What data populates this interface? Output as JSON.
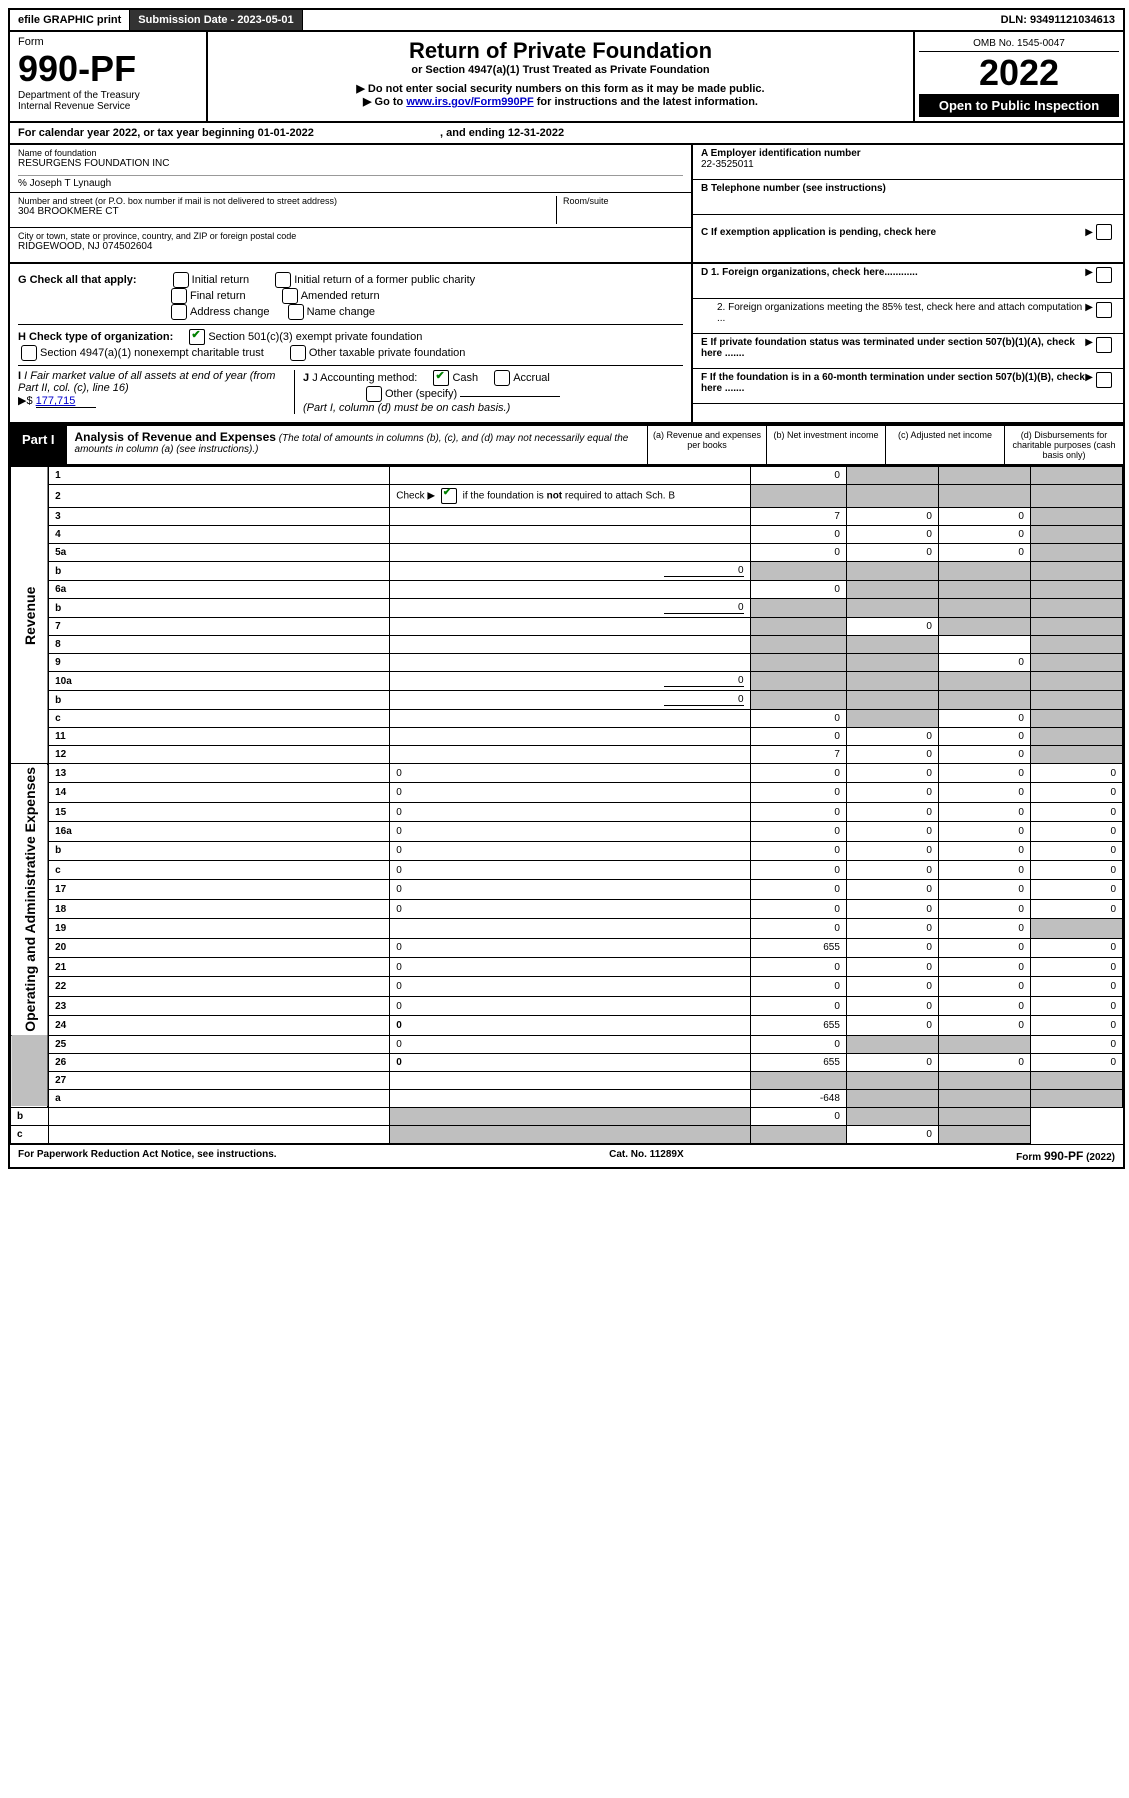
{
  "topbar": {
    "efile": "efile GRAPHIC print",
    "submission_label": "Submission Date - 2023-05-01",
    "dln_label": "DLN: 93491121034613"
  },
  "header": {
    "form_word": "Form",
    "form_no": "990-PF",
    "dept": "Department of the Treasury",
    "irs": "Internal Revenue Service",
    "title": "Return of Private Foundation",
    "subtitle": "or Section 4947(a)(1) Trust Treated as Private Foundation",
    "note1": "▶ Do not enter social security numbers on this form as it may be made public.",
    "note2_pre": "▶ Go to ",
    "note2_link": "www.irs.gov/Form990PF",
    "note2_post": " for instructions and the latest information.",
    "omb": "OMB No. 1545-0047",
    "year": "2022",
    "open_public": "Open to Public Inspection"
  },
  "calendar": {
    "text_a": "For calendar year 2022, or tax year beginning 01-01-2022",
    "text_b": ", and ending 12-31-2022"
  },
  "name_block": {
    "label": "Name of foundation",
    "name": "RESURGENS FOUNDATION INC",
    "care_of": "% Joseph T Lynaugh",
    "addr_label": "Number and street (or P.O. box number if mail is not delivered to street address)",
    "addr": "304 BROOKMERE CT",
    "room_label": "Room/suite",
    "city_label": "City or town, state or province, country, and ZIP or foreign postal code",
    "city": "RIDGEWOOD, NJ  074502604"
  },
  "right_block": {
    "a_label": "A Employer identification number",
    "a_val": "22-3525011",
    "b_label": "B Telephone number (see instructions)",
    "c_label": "C If exemption application is pending, check here",
    "d1_label": "D 1. Foreign organizations, check here............",
    "d2_label": "2. Foreign organizations meeting the 85% test, check here and attach computation ...",
    "e_label": "E  If private foundation status was terminated under section 507(b)(1)(A), check here .......",
    "f_label": "F  If the foundation is in a 60-month termination under section 507(b)(1)(B), check here .......",
    "arrow": "▶"
  },
  "g_block": {
    "label": "G Check all that apply:",
    "opts": [
      "Initial return",
      "Initial return of a former public charity",
      "Final return",
      "Amended return",
      "Address change",
      "Name change"
    ]
  },
  "h_block": {
    "label": "H Check type of organization:",
    "opt1": "Section 501(c)(3) exempt private foundation",
    "opt2": "Section 4947(a)(1) nonexempt charitable trust",
    "opt3": "Other taxable private foundation"
  },
  "i_block": {
    "label": "I Fair market value of all assets at end of year (from Part II, col. (c), line 16)",
    "arrow": "▶$",
    "val": "177,715"
  },
  "j_block": {
    "label": "J Accounting method:",
    "cash": "Cash",
    "accrual": "Accrual",
    "other": "Other (specify)",
    "note": "(Part I, column (d) must be on cash basis.)"
  },
  "part1": {
    "label": "Part I",
    "title": "Analysis of Revenue and Expenses",
    "note": "(The total of amounts in columns (b), (c), and (d) may not necessarily equal the amounts in column (a) (see instructions).)",
    "cols": {
      "a": "(a) Revenue and expenses per books",
      "b": "(b) Net investment income",
      "c": "(c) Adjusted net income",
      "d": "(d) Disbursements for charitable purposes (cash basis only)"
    }
  },
  "sides": {
    "rev": "Revenue",
    "exp": "Operating and Administrative Expenses"
  },
  "rows": [
    {
      "n": "1",
      "d": "",
      "a": "0",
      "b": "",
      "c": "",
      "shade": [
        "b",
        "c",
        "d"
      ]
    },
    {
      "n": "2",
      "d": "",
      "a": "",
      "b": "",
      "c": "",
      "shade": [
        "a",
        "b",
        "c",
        "d"
      ],
      "checkmark": true
    },
    {
      "n": "3",
      "d": "",
      "a": "7",
      "b": "0",
      "c": "0",
      "shade": [
        "d"
      ]
    },
    {
      "n": "4",
      "d": "",
      "a": "0",
      "b": "0",
      "c": "0",
      "shade": [
        "d"
      ]
    },
    {
      "n": "5a",
      "d": "",
      "a": "0",
      "b": "0",
      "c": "0",
      "shade": [
        "d"
      ]
    },
    {
      "n": "b",
      "d": "",
      "inline": "0",
      "a": "",
      "b": "",
      "c": "",
      "shade": [
        "a",
        "b",
        "c",
        "d"
      ]
    },
    {
      "n": "6a",
      "d": "",
      "a": "0",
      "b": "",
      "c": "",
      "shade": [
        "b",
        "c",
        "d"
      ]
    },
    {
      "n": "b",
      "d": "",
      "inline": "0",
      "a": "",
      "b": "",
      "c": "",
      "shade": [
        "a",
        "b",
        "c",
        "d"
      ]
    },
    {
      "n": "7",
      "d": "",
      "a": "",
      "b": "0",
      "c": "",
      "shade": [
        "a",
        "c",
        "d"
      ]
    },
    {
      "n": "8",
      "d": "",
      "a": "",
      "b": "",
      "c": "",
      "shade": [
        "a",
        "b",
        "d"
      ]
    },
    {
      "n": "9",
      "d": "",
      "a": "",
      "b": "",
      "c": "0",
      "shade": [
        "a",
        "b",
        "d"
      ]
    },
    {
      "n": "10a",
      "d": "",
      "inline": "0",
      "a": "",
      "b": "",
      "c": "",
      "shade": [
        "a",
        "b",
        "c",
        "d"
      ]
    },
    {
      "n": "b",
      "d": "",
      "inline": "0",
      "a": "",
      "b": "",
      "c": "",
      "shade": [
        "a",
        "b",
        "c",
        "d"
      ]
    },
    {
      "n": "c",
      "d": "",
      "a": "0",
      "b": "",
      "c": "0",
      "shade": [
        "b",
        "d"
      ]
    },
    {
      "n": "11",
      "d": "",
      "a": "0",
      "b": "0",
      "c": "0",
      "shade": [
        "d"
      ]
    },
    {
      "n": "12",
      "d": "",
      "a": "7",
      "b": "0",
      "c": "0",
      "shade": [
        "d"
      ],
      "bold": true
    },
    {
      "n": "13",
      "d": "0",
      "a": "0",
      "b": "0",
      "c": "0"
    },
    {
      "n": "14",
      "d": "0",
      "a": "0",
      "b": "0",
      "c": "0"
    },
    {
      "n": "15",
      "d": "0",
      "a": "0",
      "b": "0",
      "c": "0"
    },
    {
      "n": "16a",
      "d": "0",
      "a": "0",
      "b": "0",
      "c": "0"
    },
    {
      "n": "b",
      "d": "0",
      "a": "0",
      "b": "0",
      "c": "0"
    },
    {
      "n": "c",
      "d": "0",
      "a": "0",
      "b": "0",
      "c": "0"
    },
    {
      "n": "17",
      "d": "0",
      "a": "0",
      "b": "0",
      "c": "0"
    },
    {
      "n": "18",
      "d": "0",
      "a": "0",
      "b": "0",
      "c": "0"
    },
    {
      "n": "19",
      "d": "",
      "a": "0",
      "b": "0",
      "c": "0",
      "shade": [
        "d"
      ]
    },
    {
      "n": "20",
      "d": "0",
      "a": "655",
      "b": "0",
      "c": "0"
    },
    {
      "n": "21",
      "d": "0",
      "a": "0",
      "b": "0",
      "c": "0"
    },
    {
      "n": "22",
      "d": "0",
      "a": "0",
      "b": "0",
      "c": "0"
    },
    {
      "n": "23",
      "d": "0",
      "a": "0",
      "b": "0",
      "c": "0"
    },
    {
      "n": "24",
      "d": "0",
      "a": "655",
      "b": "0",
      "c": "0",
      "bold": true
    },
    {
      "n": "25",
      "d": "0",
      "a": "0",
      "b": "",
      "c": "",
      "shade": [
        "b",
        "c"
      ]
    },
    {
      "n": "26",
      "d": "0",
      "a": "655",
      "b": "0",
      "c": "0",
      "bold": true
    },
    {
      "n": "27",
      "d": "",
      "a": "",
      "b": "",
      "c": "",
      "shade": [
        "a",
        "b",
        "c",
        "d"
      ]
    },
    {
      "n": "a",
      "d": "",
      "a": "-648",
      "b": "",
      "c": "",
      "shade": [
        "b",
        "c",
        "d"
      ],
      "bold": true
    },
    {
      "n": "b",
      "d": "",
      "a": "",
      "b": "0",
      "c": "",
      "shade": [
        "a",
        "c",
        "d"
      ],
      "bold": true
    },
    {
      "n": "c",
      "d": "",
      "a": "",
      "b": "",
      "c": "0",
      "shade": [
        "a",
        "b",
        "d"
      ],
      "bold": true
    }
  ],
  "footer": {
    "left": "For Paperwork Reduction Act Notice, see instructions.",
    "center": "Cat. No. 11289X",
    "right": "Form 990-PF (2022)"
  },
  "colors": {
    "shade": "#bfbfbf",
    "link": "#0000cc",
    "check": "#008000"
  }
}
